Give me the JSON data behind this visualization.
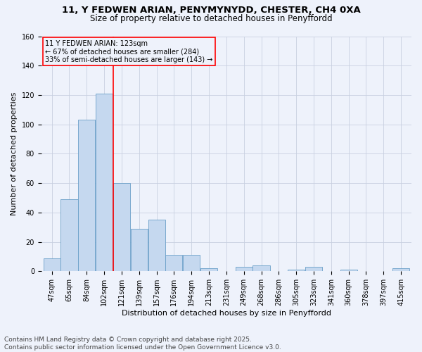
{
  "title1": "11, Y FEDWEN ARIAN, PENYMYNYDD, CHESTER, CH4 0XA",
  "title2": "Size of property relative to detached houses in Penyffordd",
  "xlabel": "Distribution of detached houses by size in Penyffordd",
  "ylabel": "Number of detached properties",
  "bar_color": "#c5d8ef",
  "bar_edge_color": "#6a9fc8",
  "grid_color": "#c8d0e0",
  "background_color": "#eef2fb",
  "bins": [
    "47sqm",
    "65sqm",
    "84sqm",
    "102sqm",
    "121sqm",
    "139sqm",
    "157sqm",
    "176sqm",
    "194sqm",
    "213sqm",
    "231sqm",
    "249sqm",
    "268sqm",
    "286sqm",
    "305sqm",
    "323sqm",
    "341sqm",
    "360sqm",
    "378sqm",
    "397sqm",
    "415sqm"
  ],
  "values": [
    9,
    49,
    103,
    121,
    60,
    29,
    35,
    11,
    11,
    2,
    0,
    3,
    4,
    0,
    1,
    3,
    0,
    1,
    0,
    0,
    2
  ],
  "red_line_bin_idx": 4,
  "annotation_line1": "11 Y FEDWEN ARIAN: 123sqm",
  "annotation_line2": "← 67% of detached houses are smaller (284)",
  "annotation_line3": "33% of semi-detached houses are larger (143) →",
  "ylim": [
    0,
    160
  ],
  "yticks": [
    0,
    20,
    40,
    60,
    80,
    100,
    120,
    140,
    160
  ],
  "footer": "Contains HM Land Registry data © Crown copyright and database right 2025.\nContains public sector information licensed under the Open Government Licence v3.0.",
  "title1_fontsize": 9.5,
  "title2_fontsize": 8.5,
  "xlabel_fontsize": 8,
  "ylabel_fontsize": 8,
  "tick_fontsize": 7,
  "annotation_fontsize": 7,
  "footer_fontsize": 6.5
}
